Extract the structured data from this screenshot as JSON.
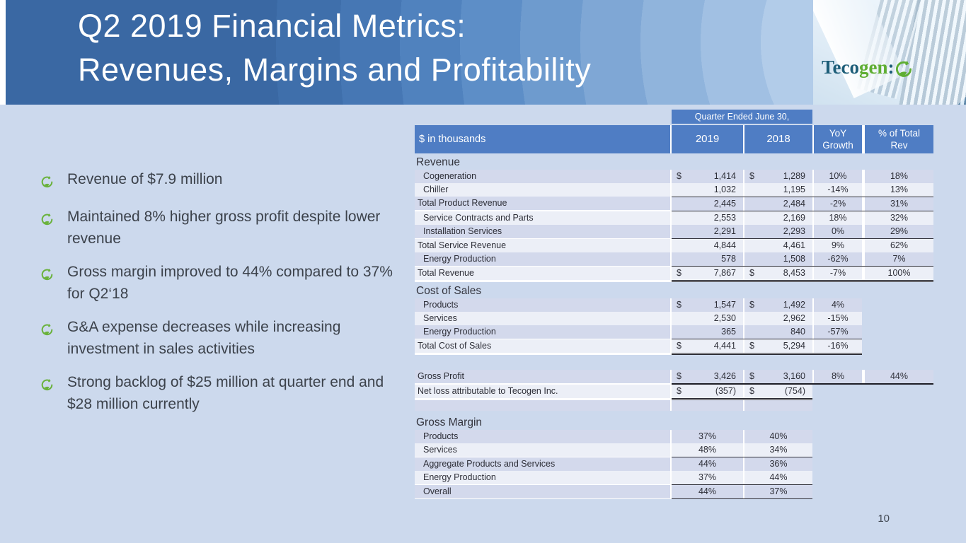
{
  "page": {
    "title_line1": "Q2 2019 Financial Metrics:",
    "title_line2": "Revenues, Margins and Profitability",
    "page_number": "10"
  },
  "logo": {
    "teal": "Teco",
    "green": "gen",
    "mark": ":"
  },
  "bullets": [
    "Revenue of $7.9 million",
    "Maintained 8% higher gross profit despite lower revenue",
    "Gross margin improved to 44% compared to 37% for Q2‘18",
    "G&A expense decreases while increasing investment in sales activities",
    "Strong backlog of $25 million at quarter end and $28 million currently"
  ],
  "colors": {
    "slide_bg": "#ccd9ed",
    "header_blue": "#4f7dc4",
    "row_shade": "#d3d9ec",
    "row_light": "#eceff7",
    "ink": "#2e2f38",
    "bullet_green": "#6ab23c",
    "logo_teal": "#1e5e79",
    "logo_green": "#5fae33"
  },
  "table": {
    "spanner": "Quarter Ended June 30,",
    "header": {
      "label": "$ in thousands",
      "y2019": "2019",
      "y2018": "2018",
      "yoy_line1": "YoY",
      "yoy_line2": "Growth",
      "pct_line1": "% of Total",
      "pct_line2": "Rev"
    },
    "sections": [
      {
        "title": "Revenue",
        "span": "all",
        "margin_top": 0,
        "rows": [
          {
            "label": "Cogeneration",
            "indent": 1,
            "shade": 1,
            "d1": "$",
            "v1": "1,414",
            "d2": "$",
            "v2": "1,289",
            "yoy": "10%",
            "pct": "18%"
          },
          {
            "label": "Chiller",
            "indent": 1,
            "v1": "1,032",
            "v2": "1,195",
            "yoy": "-14%",
            "pct": "13%"
          },
          {
            "label": "Total Product Revenue",
            "shade": 1,
            "v1": "2,445",
            "v2": "2,484",
            "yoy": "-2%",
            "pct": "31%",
            "rt": 1,
            "rb": "single"
          },
          {
            "label": "Service Contracts and Parts",
            "indent": 1,
            "v1": "2,553",
            "v2": "2,169",
            "yoy": "18%",
            "pct": "32%"
          },
          {
            "label": "Installation Services",
            "indent": 1,
            "shade": 1,
            "v1": "2,291",
            "v2": "2,293",
            "yoy": "0%",
            "pct": "29%",
            "rb": "single"
          },
          {
            "label": "Total Service Revenue",
            "v1": "4,844",
            "v2": "4,461",
            "yoy": "9%",
            "pct": "62%"
          },
          {
            "label": "Energy Production",
            "indent": 1,
            "shade": 1,
            "v1": "578",
            "v2": "1,508",
            "yoy": "-62%",
            "pct": "7%",
            "rb": "single"
          },
          {
            "label": "Total Revenue",
            "d1": "$",
            "v1": "7,867",
            "d2": "$",
            "v2": "8,453",
            "yoy": "-7%",
            "pct": "100%",
            "rb": "double"
          }
        ]
      },
      {
        "title": "Cost of Sales",
        "span": "noPct",
        "margin_top": 2,
        "rows": [
          {
            "label": "Products",
            "indent": 1,
            "shade": 1,
            "d1": "$",
            "v1": "1,547",
            "d2": "$",
            "v2": "1,492",
            "yoy": "4%"
          },
          {
            "label": "Services",
            "indent": 1,
            "v1": "2,530",
            "v2": "2,962",
            "yoy": "-15%"
          },
          {
            "label": "Energy Production",
            "indent": 1,
            "shade": 1,
            "v1": "365",
            "v2": "840",
            "yoy": "-57%",
            "rb": "single"
          },
          {
            "label": "Total Cost of Sales",
            "d1": "$",
            "v1": "4,441",
            "d2": "$",
            "v2": "5,294",
            "yoy": "-16%",
            "rb": "double"
          }
        ]
      },
      {
        "span": "all",
        "margin_top": 21,
        "rows": [
          {
            "label": "Gross Profit",
            "shade": 1,
            "d1": "$",
            "v1": "3,426",
            "d2": "$",
            "v2": "3,160",
            "yoy": "8%",
            "pct": "44%",
            "rb": "thick"
          },
          {
            "label": "Net loss attributable to Tecogen Inc.",
            "d1": "$",
            "v1": "(357)",
            "d2": "$",
            "v2": "(754)",
            "span": "years",
            "rb": "double"
          },
          {
            "blank": 1,
            "shade": 1,
            "span": "years"
          }
        ]
      },
      {
        "title": "Gross Margin",
        "span": "years",
        "align": "center",
        "margin_top": 6,
        "rows": [
          {
            "label": "Products",
            "indent": 1,
            "shade": 1,
            "v1": "37%",
            "v2": "40%"
          },
          {
            "label": "Services",
            "indent": 1,
            "v1": "48%",
            "v2": "34%",
            "rb": "single"
          },
          {
            "label": "Aggregate Products and Services",
            "indent": 1,
            "shade": 1,
            "v1": "44%",
            "v2": "36%"
          },
          {
            "label": "Energy Production",
            "indent": 1,
            "v1": "37%",
            "v2": "44%",
            "rb": "single"
          },
          {
            "label": "Overall",
            "indent": 1,
            "shade": 1,
            "v1": "44%",
            "v2": "37%",
            "rb": "single"
          }
        ]
      }
    ]
  }
}
